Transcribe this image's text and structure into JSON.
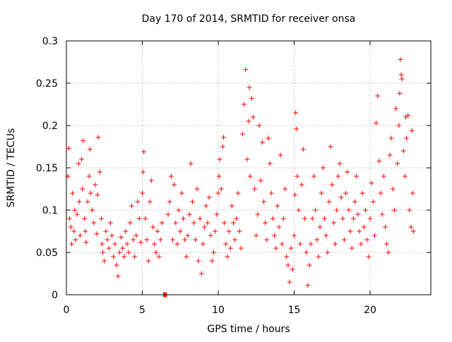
{
  "chart_data": {
    "type": "scatter",
    "title": "Day 170 of 2014, SRMTID for receiver onsa",
    "xlabel": "GPS time / hours",
    "ylabel": "SRMTID / TECUs",
    "xlim": [
      0,
      24
    ],
    "ylim": [
      0,
      0.3
    ],
    "x_ticks": [
      0,
      5,
      10,
      15,
      20
    ],
    "x_tick_labels": [
      "0",
      "5",
      "10",
      "15",
      "20"
    ],
    "y_ticks": [
      0,
      0.05,
      0.1,
      0.15,
      0.2,
      0.25,
      0.3
    ],
    "y_tick_labels": [
      "0",
      "0.05",
      "0.1",
      "0.15",
      "0.2",
      "0.25",
      "0.3"
    ],
    "grid": true,
    "marker": "+",
    "series": [
      {
        "name": "SRMTID",
        "color": "#ff0000",
        "points": [
          [
            0.1,
            0.14
          ],
          [
            0.15,
            0.173
          ],
          [
            0.2,
            0.09
          ],
          [
            0.3,
            0.08
          ],
          [
            0.35,
            0.06
          ],
          [
            0.4,
            0.12
          ],
          [
            0.5,
            0.075
          ],
          [
            0.55,
            0.1
          ],
          [
            0.6,
            0.065
          ],
          [
            0.7,
            0.095
          ],
          [
            0.8,
            0.155
          ],
          [
            0.85,
            0.11
          ],
          [
            0.9,
            0.07
          ],
          [
            1.0,
            0.16
          ],
          [
            1.05,
            0.125
          ],
          [
            1.1,
            0.182
          ],
          [
            1.2,
            0.09
          ],
          [
            1.25,
            0.075
          ],
          [
            1.3,
            0.062
          ],
          [
            1.4,
            0.11
          ],
          [
            1.5,
            0.14
          ],
          [
            1.55,
            0.172
          ],
          [
            1.6,
            0.12
          ],
          [
            1.7,
            0.1
          ],
          [
            1.8,
            0.085
          ],
          [
            1.9,
            0.13
          ],
          [
            2.0,
            0.072
          ],
          [
            2.05,
            0.118
          ],
          [
            2.1,
            0.186
          ],
          [
            2.2,
            0.145
          ],
          [
            2.3,
            0.09
          ],
          [
            2.35,
            0.06
          ],
          [
            2.4,
            0.05
          ],
          [
            2.5,
            0.04
          ],
          [
            2.6,
            0.075
          ],
          [
            2.7,
            0.065
          ],
          [
            2.8,
            0.055
          ],
          [
            2.9,
            0.085
          ],
          [
            3.0,
            0.07
          ],
          [
            3.1,
            0.045
          ],
          [
            3.2,
            0.06
          ],
          [
            3.3,
            0.035
          ],
          [
            3.4,
            0.022
          ],
          [
            3.5,
            0.05
          ],
          [
            3.6,
            0.068
          ],
          [
            3.7,
            0.055
          ],
          [
            3.8,
            0.045
          ],
          [
            3.9,
            0.075
          ],
          [
            4.0,
            0.06
          ],
          [
            4.1,
            0.05
          ],
          [
            4.2,
            0.085
          ],
          [
            4.3,
            0.105
          ],
          [
            4.4,
            0.065
          ],
          [
            4.5,
            0.045
          ],
          [
            4.6,
            0.07
          ],
          [
            4.7,
            0.11
          ],
          [
            4.8,
            0.09
          ],
          [
            4.9,
            0.062
          ],
          [
            5.0,
            0.12
          ],
          [
            5.05,
            0.145
          ],
          [
            5.1,
            0.169
          ],
          [
            5.2,
            0.09
          ],
          [
            5.3,
            0.065
          ],
          [
            5.4,
            0.04
          ],
          [
            5.5,
            0.11
          ],
          [
            5.6,
            0.135
          ],
          [
            5.7,
            0.08
          ],
          [
            5.8,
            0.06
          ],
          [
            5.9,
            0.05
          ],
          [
            6.0,
            0.075
          ],
          [
            6.1,
            0.045
          ],
          [
            6.2,
            0.065
          ],
          [
            6.3,
            0.085
          ],
          [
            6.4,
            0.0
          ],
          [
            6.45,
            0.0
          ],
          [
            6.5,
            0.0
          ],
          [
            6.55,
            0.0
          ],
          [
            6.6,
            0.0
          ],
          [
            6.7,
            0.095
          ],
          [
            6.8,
            0.11
          ],
          [
            6.9,
            0.14
          ],
          [
            7.0,
            0.065
          ],
          [
            7.1,
            0.13
          ],
          [
            7.2,
            0.085
          ],
          [
            7.3,
            0.06
          ],
          [
            7.4,
            0.1
          ],
          [
            7.5,
            0.075
          ],
          [
            7.6,
            0.12
          ],
          [
            7.7,
            0.09
          ],
          [
            7.8,
            0.065
          ],
          [
            7.9,
            0.045
          ],
          [
            8.0,
            0.07
          ],
          [
            8.1,
            0.095
          ],
          [
            8.2,
            0.155
          ],
          [
            8.3,
            0.11
          ],
          [
            8.4,
            0.085
          ],
          [
            8.5,
            0.065
          ],
          [
            8.6,
            0.125
          ],
          [
            8.7,
            0.04
          ],
          [
            8.8,
            0.09
          ],
          [
            8.9,
            0.025
          ],
          [
            9.0,
            0.06
          ],
          [
            9.1,
            0.08
          ],
          [
            9.2,
            0.105
          ],
          [
            9.3,
            0.085
          ],
          [
            9.4,
            0.115
          ],
          [
            9.5,
            0.07
          ],
          [
            9.6,
            0.04
          ],
          [
            9.7,
            0.05
          ],
          [
            9.8,
            0.075
          ],
          [
            9.9,
            0.095
          ],
          [
            10.0,
            0.12
          ],
          [
            10.05,
            0.14
          ],
          [
            10.1,
            0.16
          ],
          [
            10.2,
            0.125
          ],
          [
            10.3,
            0.175
          ],
          [
            10.35,
            0.186
          ],
          [
            10.4,
            0.085
          ],
          [
            10.5,
            0.06
          ],
          [
            10.6,
            0.045
          ],
          [
            10.7,
            0.075
          ],
          [
            10.8,
            0.055
          ],
          [
            10.9,
            0.105
          ],
          [
            11.0,
            0.085
          ],
          [
            11.1,
            0.065
          ],
          [
            11.2,
            0.09
          ],
          [
            11.3,
            0.12
          ],
          [
            11.4,
            0.075
          ],
          [
            11.5,
            0.055
          ],
          [
            11.6,
            0.19
          ],
          [
            11.7,
            0.225
          ],
          [
            11.8,
            0.266
          ],
          [
            11.9,
            0.16
          ],
          [
            12.0,
            0.205
          ],
          [
            12.05,
            0.245
          ],
          [
            12.1,
            0.14
          ],
          [
            12.2,
            0.232
          ],
          [
            12.3,
            0.21
          ],
          [
            12.4,
            0.125
          ],
          [
            12.5,
            0.07
          ],
          [
            12.6,
            0.095
          ],
          [
            12.7,
            0.2
          ],
          [
            12.8,
            0.135
          ],
          [
            12.9,
            0.18
          ],
          [
            13.0,
            0.11
          ],
          [
            13.1,
            0.085
          ],
          [
            13.2,
            0.065
          ],
          [
            13.3,
            0.185
          ],
          [
            13.4,
            0.155
          ],
          [
            13.5,
            0.12
          ],
          [
            13.6,
            0.09
          ],
          [
            13.7,
            0.07
          ],
          [
            13.8,
            0.055
          ],
          [
            13.9,
            0.105
          ],
          [
            14.0,
            0.08
          ],
          [
            14.1,
            0.165
          ],
          [
            14.2,
            0.06
          ],
          [
            14.3,
            0.09
          ],
          [
            14.4,
            0.125
          ],
          [
            14.5,
            0.045
          ],
          [
            14.6,
            0.035
          ],
          [
            14.7,
            0.015
          ],
          [
            14.8,
            0.055
          ],
          [
            14.9,
            0.03
          ],
          [
            15.0,
            0.07
          ],
          [
            15.05,
            0.118
          ],
          [
            15.1,
            0.215
          ],
          [
            15.15,
            0.196
          ],
          [
            15.2,
            0.14
          ],
          [
            15.3,
            0.1
          ],
          [
            15.4,
            0.06
          ],
          [
            15.5,
            0.13
          ],
          [
            15.6,
            0.172
          ],
          [
            15.7,
            0.09
          ],
          [
            15.8,
            0.05
          ],
          [
            15.9,
            0.011
          ],
          [
            16.0,
            0.035
          ],
          [
            16.1,
            0.06
          ],
          [
            16.2,
            0.09
          ],
          [
            16.3,
            0.14
          ],
          [
            16.4,
            0.1
          ],
          [
            16.5,
            0.065
          ],
          [
            16.6,
            0.045
          ],
          [
            16.7,
            0.08
          ],
          [
            16.8,
            0.12
          ],
          [
            16.9,
            0.15
          ],
          [
            17.0,
            0.09
          ],
          [
            17.1,
            0.07
          ],
          [
            17.2,
            0.05
          ],
          [
            17.3,
            0.11
          ],
          [
            17.4,
            0.175
          ],
          [
            17.5,
            0.13
          ],
          [
            17.6,
            0.085
          ],
          [
            17.7,
            0.06
          ],
          [
            17.8,
            0.1
          ],
          [
            17.9,
            0.14
          ],
          [
            18.0,
            0.155
          ],
          [
            18.1,
            0.115
          ],
          [
            18.2,
            0.09
          ],
          [
            18.3,
            0.065
          ],
          [
            18.4,
            0.12
          ],
          [
            18.5,
            0.145
          ],
          [
            18.6,
            0.1
          ],
          [
            18.7,
            0.075
          ],
          [
            18.8,
            0.055
          ],
          [
            18.9,
            0.09
          ],
          [
            19.0,
            0.11
          ],
          [
            19.1,
            0.14
          ],
          [
            19.2,
            0.095
          ],
          [
            19.3,
            0.075
          ],
          [
            19.4,
            0.06
          ],
          [
            19.5,
            0.12
          ],
          [
            19.6,
            0.08
          ],
          [
            19.7,
            0.1
          ],
          [
            19.8,
            0.065
          ],
          [
            19.9,
            0.045
          ],
          [
            20.0,
            0.09
          ],
          [
            20.1,
            0.132
          ],
          [
            20.2,
            0.11
          ],
          [
            20.3,
            0.07
          ],
          [
            20.4,
            0.203
          ],
          [
            20.5,
            0.235
          ],
          [
            20.6,
            0.158
          ],
          [
            20.7,
            0.12
          ],
          [
            20.8,
            0.095
          ],
          [
            20.9,
            0.14
          ],
          [
            21.0,
            0.08
          ],
          [
            21.1,
            0.06
          ],
          [
            21.2,
            0.05
          ],
          [
            21.3,
            0.165
          ],
          [
            21.4,
            0.185
          ],
          [
            21.5,
            0.125
          ],
          [
            21.6,
            0.1
          ],
          [
            21.7,
            0.22
          ],
          [
            21.8,
            0.155
          ],
          [
            21.9,
            0.2
          ],
          [
            21.95,
            0.238
          ],
          [
            22.0,
            0.278
          ],
          [
            22.05,
            0.26
          ],
          [
            22.1,
            0.255
          ],
          [
            22.2,
            0.17
          ],
          [
            22.3,
            0.14
          ],
          [
            22.35,
            0.21
          ],
          [
            22.4,
            0.185
          ],
          [
            22.5,
            0.212
          ],
          [
            22.6,
            0.1
          ],
          [
            22.7,
            0.08
          ],
          [
            22.75,
            0.194
          ],
          [
            22.8,
            0.12
          ],
          [
            22.85,
            0.075
          ]
        ]
      }
    ]
  }
}
